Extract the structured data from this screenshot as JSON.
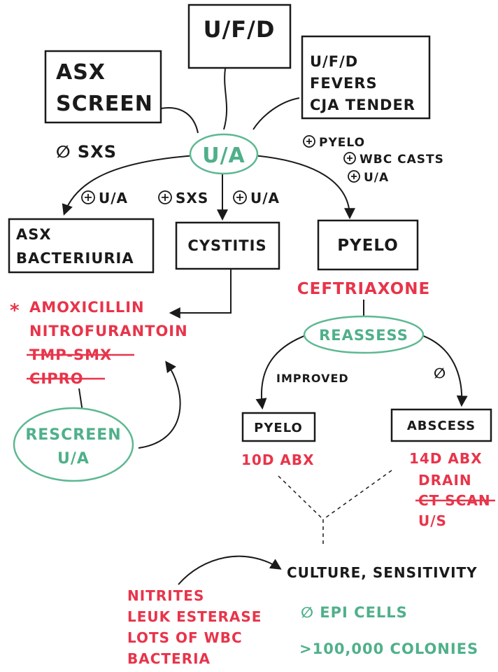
{
  "nodes": {
    "ufd": "U/F/D",
    "asx_screen": [
      "ASX",
      "SCREEN"
    ],
    "ufd_fevers": [
      "U/F/D",
      "FEVERS",
      "CJA TENDER"
    ],
    "ua": "U/A",
    "asx_bacteriuria": [
      "ASX",
      "BACTERIURIA"
    ],
    "cystitis": "CYSTITIS",
    "pyelo": "PYELO",
    "reassess": "REASSESS",
    "pyelo_improved": "PYELO",
    "abscess": "ABSCESS",
    "rescreen": [
      "RESCREEN",
      "U/A"
    ]
  },
  "edge_labels": {
    "no_sxs": "∅ SXS",
    "pos_ua_1": "U/A",
    "pos_sxs": "SXS",
    "pos_ua_2": "U/A",
    "pyelo_criteria": [
      "PYELO",
      "WBC CASTS",
      "U/A"
    ],
    "improved": "IMPROVED",
    "not_improved": "∅"
  },
  "treatments": {
    "star": "*",
    "cystitis_abx": [
      "AMOXICILLIN",
      "NITROFURANTOIN",
      "TMP-SMX",
      "CIPRO"
    ],
    "ceftriaxone": "CEFTRIAXONE",
    "pyelo_abx": "10D ABX",
    "abscess_tx": [
      "14D ABX",
      "DRAIN",
      "CT SCAN",
      "U/S"
    ]
  },
  "culture": "CULTURE, SENSITIVITY",
  "ua_findings": [
    "NITRITES",
    "LEUK ESTERASE",
    "LOTS OF WBC",
    "BACTERIA"
  ],
  "culture_findings": [
    "∅ EPI CELLS",
    ">100,000 COLONIES"
  ],
  "colors": {
    "ink": "#1a1a1a",
    "red": "#e8344a",
    "green": "#4fb08a"
  },
  "icons": [
    "plus-circle-icon",
    "arrow-head-icon"
  ]
}
